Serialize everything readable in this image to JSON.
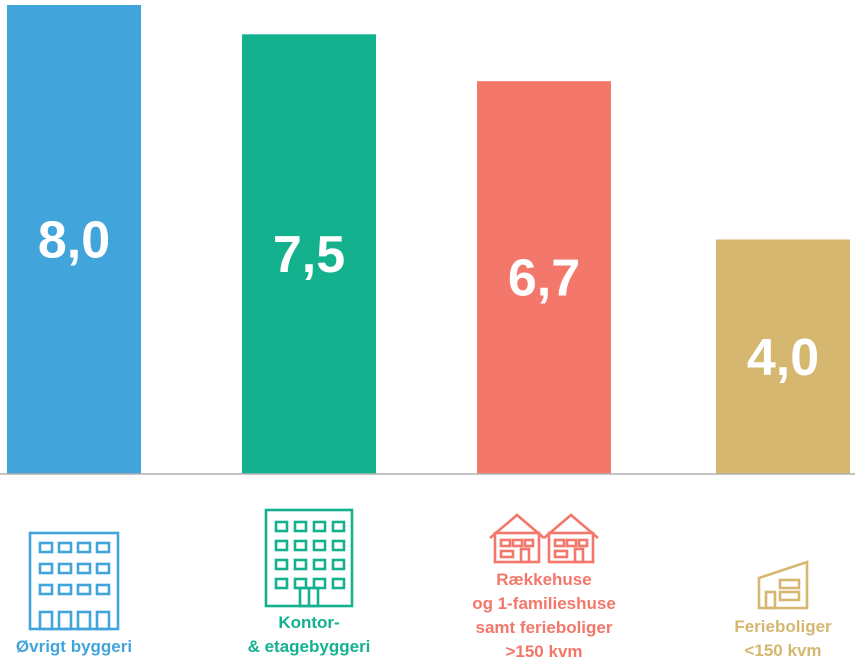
{
  "chart_data": {
    "type": "bar",
    "categories": [
      [
        "Øvrigt byggeri"
      ],
      [
        "Kontor-",
        "& etagebyggeri"
      ],
      [
        "Rækkehuse",
        "og 1-familieshuse",
        "samt ferieboliger",
        ">150 kvm"
      ],
      [
        "Ferieboliger",
        "<150 kvm"
      ]
    ],
    "values": [
      8.0,
      7.5,
      6.7,
      4.0
    ],
    "value_labels": [
      "8,0",
      "7,5",
      "6,7",
      "4,0"
    ],
    "ylim": [
      0,
      8.0
    ],
    "grid": false,
    "legend": "none",
    "colors": [
      "#41a5dc",
      "#14b18f",
      "#f3776b",
      "#d5b770"
    ],
    "baseline_color": "#b0b0b0",
    "icons": [
      "apartment-building-icon",
      "office-building-icon",
      "row-houses-icon",
      "holiday-house-icon"
    ]
  }
}
